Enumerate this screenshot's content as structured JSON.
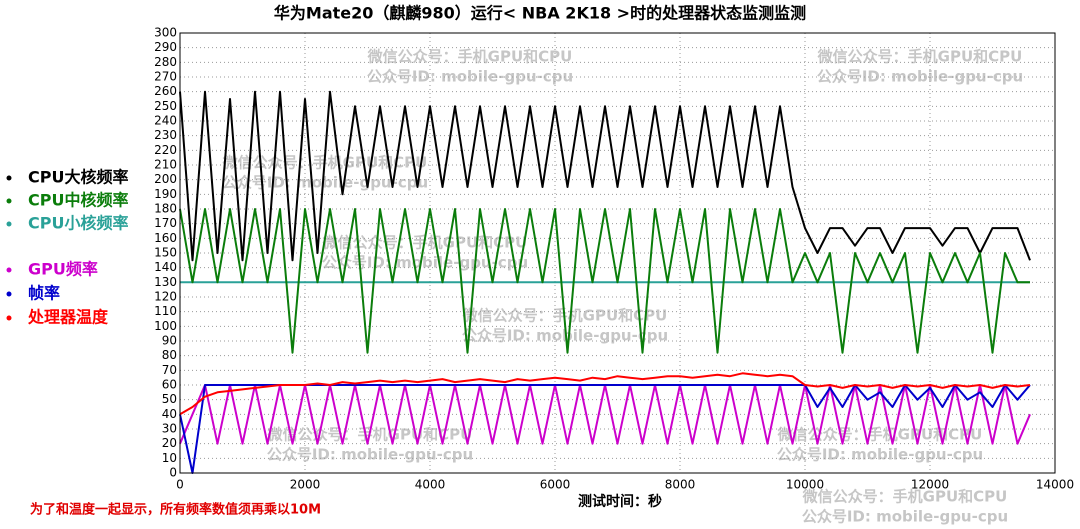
{
  "chart_data": {
    "type": "line",
    "title": "华为Mate20（麒麟980）运行< NBA 2K18 >时的处理器状态监测监测",
    "x_label": "测试时间：秒",
    "note": "为了和温度一起显示，所有频率数值须再乘以10M",
    "watermarks": [
      "微信公众号：手机GPU和CPU",
      "公众号ID: mobile-gpu-cpu"
    ],
    "xlim": [
      0,
      14000
    ],
    "xticks": [
      0,
      2000,
      4000,
      6000,
      8000,
      10000,
      12000,
      14000
    ],
    "ylim": [
      0,
      300
    ],
    "yticks": [
      0,
      10,
      20,
      30,
      40,
      50,
      60,
      70,
      80,
      90,
      100,
      110,
      120,
      130,
      140,
      150,
      160,
      170,
      180,
      190,
      200,
      210,
      220,
      230,
      240,
      250,
      260,
      270,
      280,
      290,
      300
    ],
    "grid": true,
    "x": [
      0,
      200,
      400,
      600,
      800,
      1000,
      1200,
      1400,
      1600,
      1800,
      2000,
      2200,
      2400,
      2600,
      2800,
      3000,
      3200,
      3400,
      3600,
      3800,
      4000,
      4200,
      4400,
      4600,
      4800,
      5000,
      5200,
      5400,
      5600,
      5800,
      6000,
      6200,
      6400,
      6600,
      6800,
      7000,
      7200,
      7400,
      7600,
      7800,
      8000,
      8200,
      8400,
      8600,
      8800,
      9000,
      9200,
      9400,
      9600,
      9800,
      10000,
      10200,
      10400,
      10600,
      10800,
      11000,
      11200,
      11400,
      11600,
      11800,
      12000,
      12200,
      12400,
      12600,
      12800,
      13000,
      13200,
      13400,
      13600
    ],
    "series": [
      {
        "name": "CPU大核频率",
        "color": "#000000",
        "values": [
          260,
          145,
          260,
          150,
          255,
          145,
          260,
          150,
          260,
          145,
          255,
          150,
          260,
          190,
          250,
          195,
          250,
          195,
          250,
          195,
          250,
          195,
          250,
          195,
          250,
          195,
          250,
          195,
          250,
          195,
          250,
          195,
          250,
          195,
          250,
          195,
          250,
          195,
          250,
          195,
          250,
          195,
          250,
          195,
          250,
          195,
          250,
          195,
          250,
          195,
          167,
          150,
          167,
          167,
          155,
          167,
          167,
          150,
          167,
          167,
          167,
          155,
          167,
          167,
          150,
          167,
          167,
          167,
          145
        ]
      },
      {
        "name": "CPU中核频率",
        "color": "#0b7d0b",
        "values": [
          180,
          130,
          180,
          130,
          180,
          130,
          180,
          130,
          180,
          82,
          180,
          130,
          180,
          130,
          180,
          82,
          180,
          130,
          180,
          130,
          180,
          130,
          180,
          82,
          180,
          130,
          180,
          130,
          180,
          130,
          180,
          82,
          180,
          130,
          180,
          130,
          180,
          82,
          180,
          130,
          180,
          130,
          180,
          82,
          180,
          130,
          180,
          130,
          180,
          130,
          150,
          130,
          150,
          82,
          150,
          130,
          150,
          130,
          150,
          82,
          150,
          130,
          150,
          130,
          150,
          82,
          150,
          130,
          130
        ]
      },
      {
        "name": "CPU小核频率",
        "color": "#2aa198",
        "values": [
          130,
          130,
          130,
          130,
          130,
          130,
          130,
          130,
          130,
          130,
          130,
          130,
          130,
          130,
          130,
          130,
          130,
          130,
          130,
          130,
          130,
          130,
          130,
          130,
          130,
          130,
          130,
          130,
          130,
          130,
          130,
          130,
          130,
          130,
          130,
          130,
          130,
          130,
          130,
          130,
          130,
          130,
          130,
          130,
          130,
          130,
          130,
          130,
          130,
          130,
          130,
          130,
          130,
          130,
          130,
          130,
          130,
          130,
          130,
          130,
          130,
          130,
          130,
          130,
          130,
          130,
          130,
          130,
          130
        ]
      },
      {
        "name": "GPU频率",
        "color": "#cc00cc",
        "values": [
          20,
          40,
          60,
          20,
          60,
          20,
          60,
          20,
          60,
          20,
          60,
          20,
          60,
          20,
          60,
          20,
          60,
          20,
          60,
          20,
          60,
          20,
          60,
          20,
          60,
          20,
          60,
          20,
          60,
          20,
          60,
          20,
          60,
          20,
          60,
          20,
          60,
          20,
          60,
          20,
          60,
          20,
          60,
          20,
          60,
          20,
          60,
          20,
          60,
          20,
          60,
          20,
          60,
          20,
          60,
          20,
          60,
          20,
          60,
          20,
          60,
          20,
          60,
          20,
          60,
          20,
          60,
          20,
          40
        ]
      },
      {
        "name": "帧率",
        "color": "#0000cc",
        "values": [
          40,
          0,
          60,
          60,
          60,
          60,
          60,
          60,
          60,
          60,
          60,
          60,
          60,
          60,
          60,
          60,
          60,
          60,
          60,
          60,
          60,
          60,
          60,
          60,
          60,
          60,
          60,
          60,
          60,
          60,
          60,
          60,
          60,
          60,
          60,
          60,
          60,
          60,
          60,
          60,
          60,
          60,
          60,
          60,
          60,
          60,
          60,
          60,
          60,
          60,
          60,
          45,
          58,
          45,
          60,
          50,
          55,
          45,
          60,
          50,
          58,
          45,
          60,
          50,
          55,
          45,
          60,
          50,
          60
        ]
      },
      {
        "name": "处理器温度",
        "color": "#ff0000",
        "values": [
          40,
          45,
          52,
          55,
          56,
          57,
          58,
          59,
          60,
          60,
          60,
          61,
          60,
          62,
          61,
          62,
          63,
          62,
          63,
          62,
          63,
          64,
          62,
          63,
          64,
          63,
          62,
          64,
          63,
          64,
          65,
          64,
          63,
          65,
          64,
          66,
          65,
          64,
          65,
          66,
          66,
          65,
          66,
          67,
          66,
          68,
          67,
          66,
          67,
          66,
          60,
          59,
          60,
          58,
          60,
          59,
          60,
          58,
          60,
          59,
          60,
          58,
          60,
          59,
          60,
          58,
          60,
          59,
          60
        ]
      }
    ]
  }
}
